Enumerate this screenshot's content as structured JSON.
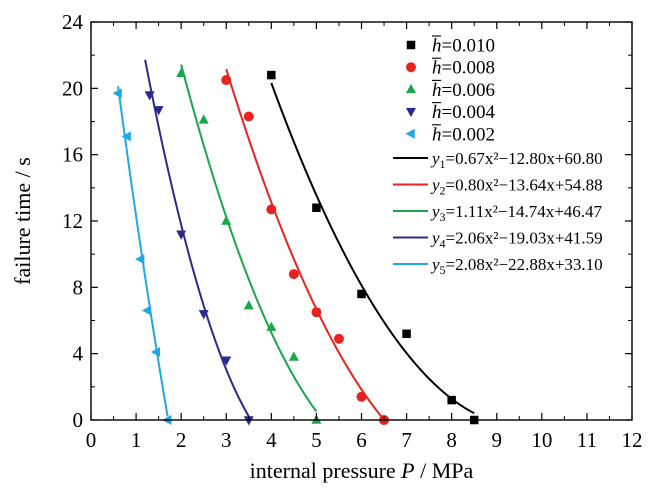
{
  "chart_data": {
    "type": "scatter",
    "xlabel_text": "internal pressure ",
    "xlabel_var": "P",
    "xlabel_unit": " / MPa",
    "ylabel": "failure time / s",
    "xlim": [
      0,
      12
    ],
    "ylim": [
      0,
      24
    ],
    "x_ticks": [
      0,
      1,
      2,
      3,
      4,
      5,
      6,
      7,
      8,
      9,
      10,
      11,
      12
    ],
    "y_ticks": [
      0,
      4,
      8,
      12,
      16,
      20,
      24
    ],
    "grid": false,
    "legend_position": "top-right",
    "series": [
      {
        "name": "h=0.010",
        "h_value": "=0.010",
        "marker": "square",
        "color": "#000000",
        "points": [
          [
            4.0,
            20.8
          ],
          [
            5.0,
            12.8
          ],
          [
            6.0,
            7.6
          ],
          [
            7.0,
            5.2
          ],
          [
            8.0,
            1.2
          ],
          [
            8.5,
            0.0
          ]
        ],
        "fit": {
          "label_sub": "1",
          "equation": "=0.67x²−12.80x+60.80",
          "a": 0.67,
          "b": -12.8,
          "c": 60.8,
          "x_range": [
            4.0,
            8.5
          ]
        }
      },
      {
        "name": "h=0.008",
        "h_value": "=0.008",
        "marker": "circle",
        "color": "#e8231f",
        "points": [
          [
            3.0,
            20.5
          ],
          [
            3.5,
            18.3
          ],
          [
            4.0,
            12.7
          ],
          [
            4.5,
            8.8
          ],
          [
            5.0,
            6.5
          ],
          [
            5.5,
            4.9
          ],
          [
            6.0,
            1.4
          ],
          [
            6.5,
            0.0
          ]
        ],
        "fit": {
          "label_sub": "2",
          "equation": "=0.80x²−13.64x+54.88",
          "a": 0.8,
          "b": -13.64,
          "c": 54.88,
          "x_range": [
            3.0,
            6.5
          ]
        }
      },
      {
        "name": "h=0.006",
        "h_value": "=0.006",
        "marker": "triangle-up",
        "color": "#1aa64a",
        "points": [
          [
            2.0,
            20.9
          ],
          [
            2.5,
            18.1
          ],
          [
            3.0,
            12.0
          ],
          [
            3.5,
            6.9
          ],
          [
            4.0,
            5.6
          ],
          [
            4.5,
            3.8
          ],
          [
            5.0,
            0.0
          ]
        ],
        "fit": {
          "label_sub": "3",
          "equation": "=1.11x²−14.74x+46.47",
          "a": 1.11,
          "b": -14.74,
          "c": 46.47,
          "x_range": [
            2.0,
            5.0
          ]
        }
      },
      {
        "name": "h=0.004",
        "h_value": "=0.004",
        "marker": "triangle-down",
        "color": "#2b2a8c",
        "points": [
          [
            1.3,
            19.6
          ],
          [
            1.5,
            18.7
          ],
          [
            2.0,
            11.2
          ],
          [
            2.5,
            6.4
          ],
          [
            3.0,
            3.6
          ],
          [
            3.5,
            0.0
          ]
        ],
        "fit": {
          "label_sub": "4",
          "equation": "=2.06x²−19.03x+41.59",
          "a": 2.06,
          "b": -19.03,
          "c": 41.59,
          "x_range": [
            1.2,
            3.5
          ]
        }
      },
      {
        "name": "h=0.002",
        "h_value": "=0.002",
        "marker": "triangle-left",
        "color": "#1ea9e6",
        "points": [
          [
            0.6,
            19.7
          ],
          [
            0.8,
            17.1
          ],
          [
            1.1,
            9.7
          ],
          [
            1.25,
            6.6
          ],
          [
            1.45,
            4.1
          ],
          [
            1.7,
            0.0
          ]
        ],
        "fit": {
          "label_sub": "5",
          "equation": "=2.08x²−22.88x+33.10",
          "a": 2.08,
          "b": -22.88,
          "c": 33.1,
          "x_range": [
            0.6,
            1.7
          ]
        }
      }
    ]
  }
}
